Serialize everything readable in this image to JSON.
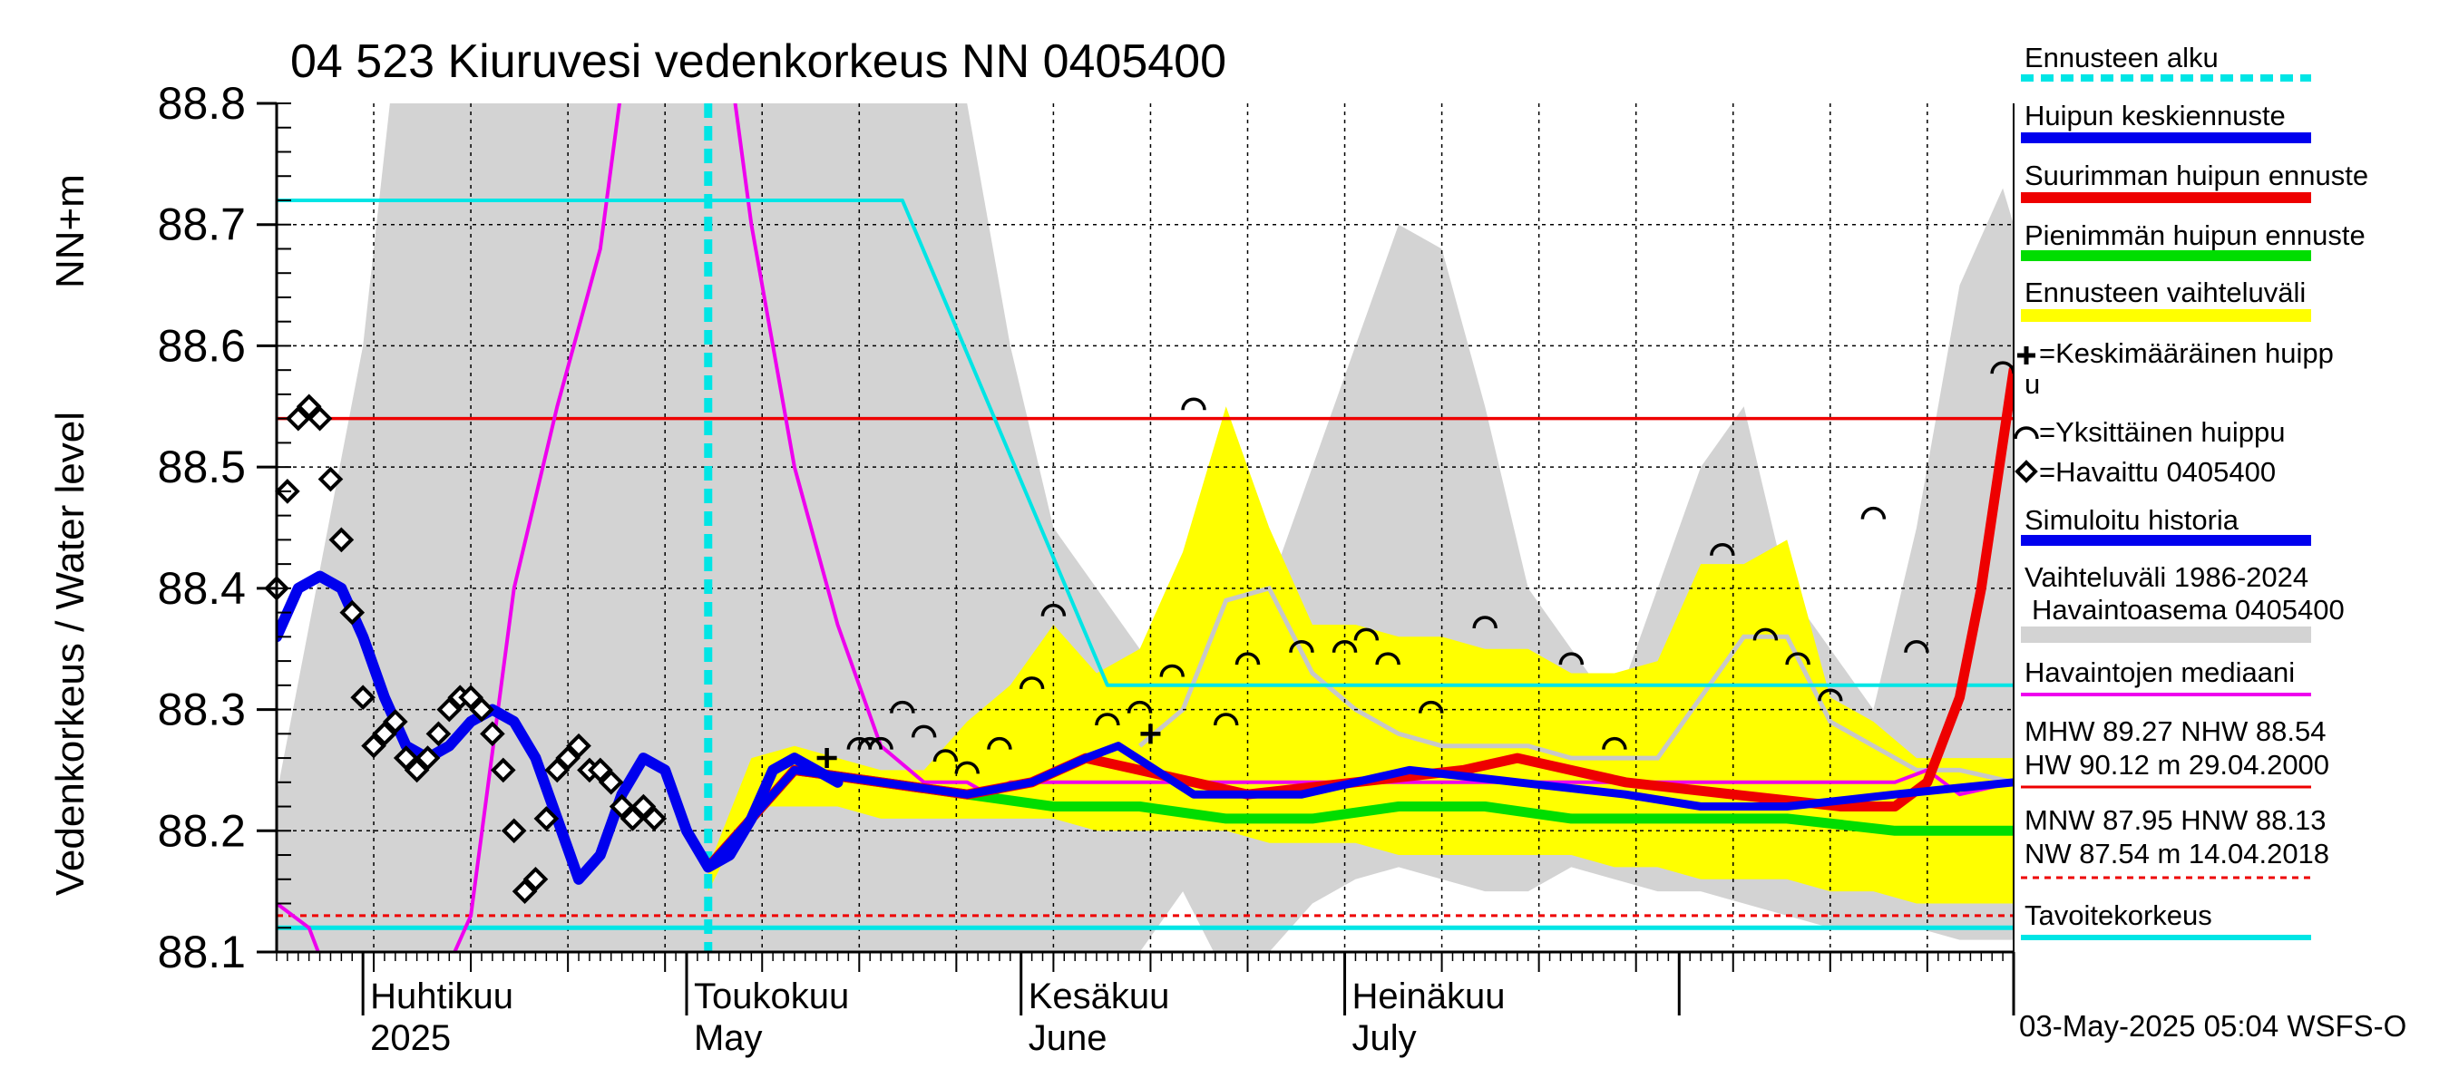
{
  "chart_data": {
    "type": "line",
    "title": "04 523 Kiuruvesi vedenkorkeus NN 0405400",
    "ylabel_left": "Vedenkorkeus / Water level",
    "ylabel_unit": "NN+m",
    "ylim": [
      88.1,
      88.8
    ],
    "yticks": [
      "88.1",
      "88.2",
      "88.3",
      "88.4",
      "88.5",
      "88.6",
      "88.7",
      "88.8"
    ],
    "x_range_days": [
      0,
      161
    ],
    "x_range_note": "day 0 = 24 Mar 2025 ... day 161 = 1 Sep 2025",
    "month_labels": [
      {
        "fi": "Huhtikuu",
        "en": "2025",
        "day": 8
      },
      {
        "fi": "Toukokuu",
        "en": "May",
        "day": 38
      },
      {
        "fi": "Kesäkuu",
        "en": "June",
        "day": 69
      },
      {
        "fi": "Heinäkuu",
        "en": "July",
        "day": 99
      }
    ],
    "month_boundaries_days": [
      8,
      38,
      69,
      99,
      130,
      161
    ],
    "week_gridlines_days": [
      9,
      18,
      27,
      36,
      45,
      54,
      63,
      72,
      81,
      90,
      99,
      108,
      117,
      126,
      135,
      144,
      153
    ],
    "forecast_start_day": 40,
    "reference_lines": {
      "upper_red": 88.54,
      "tavoitekorkeus": 88.12,
      "nw_dashed": 88.13
    },
    "series": [
      {
        "name": "Havaittu 0405400",
        "kind": "observed_markers",
        "x": [
          0,
          1,
          2,
          3,
          4,
          5,
          6,
          7,
          8,
          9,
          10,
          11,
          12,
          13,
          14,
          15,
          16,
          17,
          18,
          19,
          20,
          21,
          22,
          23,
          24,
          25,
          26,
          27,
          28,
          29,
          30,
          31,
          32,
          33,
          34,
          35
        ],
        "y": [
          88.4,
          88.48,
          88.54,
          88.55,
          88.54,
          88.49,
          88.44,
          88.38,
          88.31,
          88.27,
          88.28,
          88.29,
          88.26,
          88.25,
          88.26,
          88.28,
          88.3,
          88.31,
          88.31,
          88.3,
          88.28,
          88.25,
          88.2,
          88.15,
          88.16,
          88.21,
          88.25,
          88.26,
          88.27,
          88.25,
          88.25,
          88.24,
          88.22,
          88.21,
          88.22,
          88.21
        ]
      },
      {
        "name": "Simuloitu historia",
        "kind": "simulated",
        "x": [
          0,
          2,
          4,
          6,
          8,
          10,
          12,
          14,
          16,
          18,
          20,
          22,
          24,
          26,
          28,
          30,
          32,
          34,
          36,
          38,
          40,
          42,
          44,
          46,
          48,
          50,
          52
        ],
        "y": [
          88.36,
          88.4,
          88.41,
          88.4,
          88.36,
          88.31,
          88.27,
          88.26,
          88.27,
          88.29,
          88.3,
          88.29,
          88.26,
          88.21,
          88.16,
          88.18,
          88.23,
          88.26,
          88.25,
          88.2,
          88.17,
          88.18,
          88.21,
          88.25,
          88.26,
          88.25,
          88.24
        ]
      },
      {
        "name": "Huipun keskiennuste",
        "kind": "forecast_mean",
        "x": [
          40,
          48,
          56,
          64,
          70,
          75,
          78,
          85,
          95,
          105,
          115,
          125,
          132,
          140,
          150,
          161
        ],
        "y": [
          88.17,
          88.25,
          88.24,
          88.23,
          88.24,
          88.26,
          88.27,
          88.23,
          88.23,
          88.25,
          88.24,
          88.23,
          88.22,
          88.22,
          88.23,
          88.24
        ]
      },
      {
        "name": "Suurimman huipun ennuste",
        "kind": "forecast_max",
        "x": [
          40,
          48,
          56,
          64,
          70,
          75,
          80,
          90,
          100,
          110,
          115,
          125,
          135,
          145,
          150,
          153,
          156,
          158,
          160,
          161
        ],
        "y": [
          88.17,
          88.25,
          88.24,
          88.23,
          88.24,
          88.26,
          88.25,
          88.23,
          88.24,
          88.25,
          88.26,
          88.24,
          88.23,
          88.22,
          88.22,
          88.24,
          88.31,
          88.4,
          88.52,
          88.58
        ]
      },
      {
        "name": "Pienimmän huipun ennuste",
        "kind": "forecast_min",
        "x": [
          40,
          48,
          56,
          64,
          72,
          80,
          88,
          96,
          104,
          112,
          120,
          130,
          140,
          150,
          161
        ],
        "y": [
          88.17,
          88.25,
          88.24,
          88.23,
          88.22,
          88.22,
          88.21,
          88.21,
          88.22,
          88.22,
          88.21,
          88.21,
          88.21,
          88.2,
          88.2
        ]
      },
      {
        "name": "Havaintojen mediaani",
        "kind": "median",
        "x": [
          0,
          3,
          6,
          10,
          14,
          18,
          22,
          26,
          30,
          34,
          38,
          44,
          48,
          52,
          56,
          60,
          64,
          66,
          68,
          72,
          80,
          90,
          100,
          110,
          120,
          130,
          135,
          140,
          145,
          150,
          153,
          156,
          161
        ],
        "y": [
          88.14,
          88.12,
          88.05,
          87.95,
          88.05,
          88.13,
          88.4,
          88.55,
          88.68,
          88.95,
          89.1,
          88.7,
          88.5,
          88.37,
          88.27,
          88.24,
          88.24,
          88.23,
          88.24,
          88.24,
          88.24,
          88.24,
          88.24,
          88.24,
          88.24,
          88.24,
          88.24,
          88.24,
          88.24,
          88.24,
          88.25,
          88.23,
          88.24
        ]
      },
      {
        "name": "Tavoitekorkeus",
        "kind": "target_line",
        "x": [
          0,
          58,
          77,
          161
        ],
        "y": [
          88.72,
          88.72,
          88.32,
          88.32
        ]
      }
    ],
    "forecast_band": {
      "name": "Ennusteen vaihteluväli",
      "x": [
        40,
        44,
        48,
        52,
        56,
        60,
        64,
        68,
        72,
        76,
        80,
        84,
        88,
        92,
        96,
        100,
        104,
        108,
        112,
        116,
        120,
        124,
        128,
        132,
        136,
        140,
        144,
        148,
        152,
        156,
        161
      ],
      "upper": [
        88.17,
        88.26,
        88.27,
        88.26,
        88.25,
        88.25,
        88.29,
        88.32,
        88.37,
        88.33,
        88.35,
        88.43,
        88.55,
        88.45,
        88.37,
        88.37,
        88.36,
        88.36,
        88.35,
        88.35,
        88.33,
        88.33,
        88.34,
        88.42,
        88.42,
        88.44,
        88.31,
        88.29,
        88.26,
        88.26,
        88.26
      ],
      "lower": [
        88.15,
        88.22,
        88.22,
        88.22,
        88.21,
        88.21,
        88.21,
        88.21,
        88.21,
        88.2,
        88.2,
        88.2,
        88.2,
        88.19,
        88.19,
        88.19,
        88.18,
        88.18,
        88.18,
        88.18,
        88.18,
        88.17,
        88.17,
        88.16,
        88.16,
        88.16,
        88.15,
        88.15,
        88.14,
        88.14,
        88.14
      ],
      "inner_median": {
        "x": [
          80,
          84,
          88,
          92,
          96,
          100,
          104,
          108,
          112,
          116,
          120,
          124,
          128,
          132,
          136,
          140,
          144,
          148,
          152,
          156,
          161
        ],
        "y": [
          88.27,
          88.3,
          88.39,
          88.4,
          88.33,
          88.3,
          88.28,
          88.27,
          88.27,
          88.27,
          88.26,
          88.26,
          88.26,
          88.31,
          88.36,
          88.36,
          88.29,
          88.27,
          88.25,
          88.25,
          88.24
        ]
      }
    },
    "history_band": {
      "name": "Vaihteluväli 1986-2024",
      "x": [
        0,
        8,
        12,
        16,
        20,
        24,
        28,
        32,
        36,
        40,
        44,
        48,
        52,
        56,
        60,
        64,
        68,
        72,
        76,
        80,
        84,
        88,
        92,
        96,
        100,
        104,
        108,
        112,
        116,
        120,
        124,
        128,
        132,
        136,
        140,
        144,
        148,
        152,
        156,
        160,
        161
      ],
      "upper": [
        88.23,
        88.6,
        88.92,
        89.2,
        89.35,
        89.4,
        89.4,
        89.4,
        89.4,
        89.3,
        89.2,
        89.1,
        89.0,
        88.9,
        88.85,
        88.8,
        88.6,
        88.45,
        88.4,
        88.35,
        88.3,
        88.3,
        88.4,
        88.5,
        88.6,
        88.7,
        88.68,
        88.55,
        88.4,
        88.35,
        88.3,
        88.4,
        88.5,
        88.55,
        88.4,
        88.35,
        88.3,
        88.45,
        88.65,
        88.73,
        88.7
      ],
      "lower": [
        88.1,
        88.09,
        88.05,
        88.05,
        88.05,
        88.05,
        88.04,
        88.05,
        88.06,
        88.08,
        88.1,
        88.1,
        88.1,
        88.1,
        88.08,
        88.05,
        88.05,
        88.05,
        88.06,
        88.1,
        88.15,
        88.08,
        88.1,
        88.14,
        88.16,
        88.17,
        88.16,
        88.15,
        88.15,
        88.17,
        88.16,
        88.15,
        88.15,
        88.14,
        88.13,
        88.12,
        88.12,
        88.12,
        88.11,
        88.11,
        88.11
      ]
    },
    "keskimaarainen_huippu": [
      {
        "x": 51,
        "y": 88.26
      },
      {
        "x": 81,
        "y": 88.28
      }
    ],
    "yksittaiset_huiput": [
      {
        "x": 54,
        "y": 88.27
      },
      {
        "x": 55,
        "y": 88.27
      },
      {
        "x": 56,
        "y": 88.27
      },
      {
        "x": 58,
        "y": 88.3
      },
      {
        "x": 60,
        "y": 88.28
      },
      {
        "x": 62,
        "y": 88.26
      },
      {
        "x": 64,
        "y": 88.25
      },
      {
        "x": 67,
        "y": 88.27
      },
      {
        "x": 70,
        "y": 88.32
      },
      {
        "x": 72,
        "y": 88.38
      },
      {
        "x": 77,
        "y": 88.29
      },
      {
        "x": 80,
        "y": 88.3
      },
      {
        "x": 83,
        "y": 88.33
      },
      {
        "x": 85,
        "y": 88.55
      },
      {
        "x": 88,
        "y": 88.29
      },
      {
        "x": 90,
        "y": 88.34
      },
      {
        "x": 95,
        "y": 88.35
      },
      {
        "x": 99,
        "y": 88.35
      },
      {
        "x": 101,
        "y": 88.36
      },
      {
        "x": 103,
        "y": 88.34
      },
      {
        "x": 107,
        "y": 88.3
      },
      {
        "x": 112,
        "y": 88.37
      },
      {
        "x": 120,
        "y": 88.34
      },
      {
        "x": 124,
        "y": 88.27
      },
      {
        "x": 134,
        "y": 88.43
      },
      {
        "x": 138,
        "y": 88.36
      },
      {
        "x": 141,
        "y": 88.34
      },
      {
        "x": 144,
        "y": 88.31
      },
      {
        "x": 148,
        "y": 88.46
      },
      {
        "x": 152,
        "y": 88.35
      },
      {
        "x": 160,
        "y": 88.58
      }
    ]
  },
  "legend": {
    "ennusteen_alku": "Ennusteen alku",
    "huipun_keskiennuste": "Huipun keskiennuste",
    "suurimman_huipun_ennuste": "Suurimman huipun ennuste",
    "pienimman_huipun_ennuste": "Pienimmän huipun ennuste",
    "ennusteen_vaihteluvali": "Ennusteen vaihteluväli",
    "keskimaarainen_huippu_line1": "=Keskimääräinen huipp",
    "keskimaarainen_huippu_line2": "u",
    "yksittainen_huippu": "=Yksittäinen huippu",
    "havaittu": "=Havaittu 0405400",
    "simuloitu_historia": "Simuloitu historia",
    "vaihteluvali": "Vaihteluväli 1986-2024",
    "havaintoasema": "Havaintoasema 0405400",
    "havaintojen_mediaani": "Havaintojen mediaani",
    "stats_line1": "MHW  89.27 NHW  88.54",
    "stats_line2": "HW  90.12 m 29.04.2000",
    "stats_line3": "MNW  87.95 HNW  88.13",
    "stats_line4": "NW  87.54 m 14.04.2018",
    "tavoitekorkeus": "Tavoitekorkeus"
  },
  "colors": {
    "forecast_start": "#00e5e5",
    "mean": "#0000ee",
    "max": "#ee0000",
    "min": "#00dd00",
    "band": "#ffff00",
    "history": "#d3d3d3",
    "median": "#ee00ee",
    "target": "#00e5e5",
    "upper_ref": "#ee0000"
  },
  "timestamp": "03-May-2025 05:04 WSFS-O"
}
